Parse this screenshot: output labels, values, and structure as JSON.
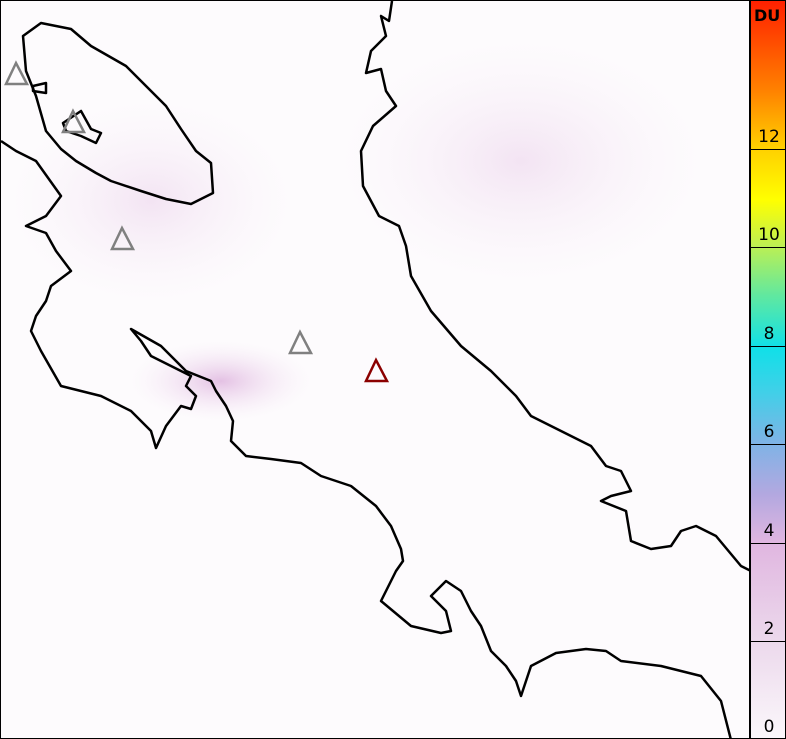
{
  "colorbar": {
    "unit": "DU",
    "ticks": [
      "0",
      "2",
      "4",
      "6",
      "8",
      "10",
      "12"
    ],
    "range": [
      0,
      15
    ]
  },
  "map": {
    "volcano_markers": [
      {
        "color": "#808080"
      },
      {
        "color": "#808080"
      },
      {
        "color": "#808080"
      },
      {
        "color": "#808080"
      },
      {
        "color": "#8b0000"
      }
    ],
    "background_color": "#fdfbfd",
    "coastline_color": "#000000"
  }
}
